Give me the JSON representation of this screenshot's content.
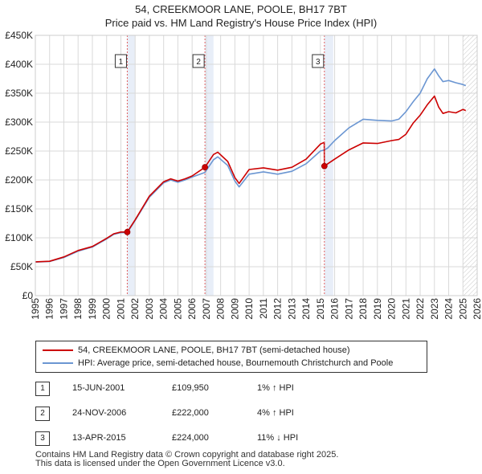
{
  "title_line1": "54, CREEKMOOR LANE, POOLE, BH17 7BT",
  "title_line2": "Price paid vs. HM Land Registry's House Price Index (HPI)",
  "legend": {
    "property_label": "54, CREEKMOOR LANE, POOLE, BH17 7BT (semi-detached house)",
    "hpi_label": "HPI: Average price, semi-detached house, Bournemouth Christchurch and Poole"
  },
  "colors": {
    "property": "#cc0000",
    "hpi": "#6b96d2",
    "band": "#e8eef8",
    "grid": "#d9d9d9"
  },
  "transactions": [
    {
      "num": "1",
      "date": "15-JUN-2001",
      "price": "£109,950",
      "hpi": "1% ↑ HPI"
    },
    {
      "num": "2",
      "date": "24-NOV-2006",
      "price": "£222,000",
      "hpi": "4% ↑ HPI"
    },
    {
      "num": "3",
      "date": "13-APR-2015",
      "price": "£224,000",
      "hpi": "11% ↓ HPI"
    }
  ],
  "footer_line1": "Contains HM Land Registry data © Crown copyright and database right 2025.",
  "footer_line2": "This data is licensed under the Open Government Licence v3.0.",
  "chart_data": {
    "type": "line",
    "title": "54, CREEKMOOR LANE, POOLE, BH17 7BT — Price paid vs. HM Land Registry's House Price Index (HPI)",
    "xlabel": "",
    "ylabel": "",
    "xlim": [
      1995,
      2026
    ],
    "ylim": [
      0,
      450000
    ],
    "x_ticks": [
      "1995",
      "1996",
      "1997",
      "1998",
      "1999",
      "2000",
      "2001",
      "2002",
      "2003",
      "2004",
      "2005",
      "2006",
      "2007",
      "2008",
      "2009",
      "2010",
      "2011",
      "2012",
      "2013",
      "2014",
      "2015",
      "2016",
      "2017",
      "2018",
      "2019",
      "2020",
      "2021",
      "2022",
      "2023",
      "2024",
      "2025",
      "2026"
    ],
    "y_ticks": [
      {
        "value": 0,
        "label": "£0"
      },
      {
        "value": 50000,
        "label": "£50K"
      },
      {
        "value": 100000,
        "label": "£100K"
      },
      {
        "value": 150000,
        "label": "£150K"
      },
      {
        "value": 200000,
        "label": "£200K"
      },
      {
        "value": 250000,
        "label": "£250K"
      },
      {
        "value": 300000,
        "label": "£300K"
      },
      {
        "value": 350000,
        "label": "£350K"
      },
      {
        "value": 400000,
        "label": "£400K"
      },
      {
        "value": 450000,
        "label": "£450K"
      }
    ],
    "grid": true,
    "shaded_bands": [
      [
        2001.45,
        2002.0
      ],
      [
        2006.9,
        2007.5
      ],
      [
        2015.28,
        2015.9
      ]
    ],
    "hatched_future_from": 2025.0,
    "series": [
      {
        "name": "HPI: Average price, semi-detached house, Bournemouth Christchurch and Poole",
        "x": [
          1995.0,
          1996.0,
          1997.0,
          1998.0,
          1999.0,
          2000.0,
          2000.5,
          2001.0,
          2001.45,
          2002.0,
          2003.0,
          2004.0,
          2004.5,
          2005.0,
          2005.5,
          2006.0,
          2006.9,
          2007.5,
          2007.8,
          2008.5,
          2009.0,
          2009.3,
          2010.0,
          2011.0,
          2012.0,
          2013.0,
          2014.0,
          2015.0,
          2015.28,
          2015.5,
          2016.0,
          2017.0,
          2018.0,
          2019.0,
          2020.0,
          2020.5,
          2021.0,
          2021.5,
          2022.0,
          2022.5,
          2023.0,
          2023.3,
          2023.6,
          2024.0,
          2024.5,
          2025.0,
          2025.2
        ],
        "values": [
          58000,
          59000,
          66000,
          77000,
          84000,
          98000,
          106000,
          109000,
          108800,
          130000,
          170000,
          195000,
          200000,
          196000,
          200000,
          205000,
          213000,
          235000,
          240000,
          225000,
          198000,
          188000,
          210000,
          214000,
          210000,
          215000,
          228000,
          250000,
          252000,
          255000,
          268000,
          290000,
          305000,
          303000,
          302000,
          305000,
          318000,
          335000,
          350000,
          375000,
          392000,
          380000,
          370000,
          372000,
          368000,
          365000,
          363000
        ]
      },
      {
        "name": "54, CREEKMOOR LANE, POOLE, BH17 7BT (semi-detached house)",
        "x": [
          1995.0,
          1996.0,
          1997.0,
          1998.0,
          1999.0,
          2000.0,
          2000.5,
          2001.0,
          2001.45,
          2002.0,
          2003.0,
          2004.0,
          2004.5,
          2005.0,
          2005.5,
          2006.0,
          2006.9,
          2007.5,
          2007.8,
          2008.5,
          2009.0,
          2009.3,
          2010.0,
          2011.0,
          2012.0,
          2013.0,
          2014.0,
          2015.0,
          2015.27,
          2015.28,
          2016.0,
          2017.0,
          2018.0,
          2019.0,
          2020.0,
          2020.5,
          2021.0,
          2021.5,
          2022.0,
          2022.5,
          2023.0,
          2023.3,
          2023.6,
          2024.0,
          2024.5,
          2025.0,
          2025.2
        ],
        "values": [
          58500,
          59500,
          67000,
          78000,
          85000,
          99000,
          107000,
          110000,
          109950,
          131000,
          172000,
          197000,
          202000,
          198000,
          202000,
          207000,
          222000,
          244000,
          248000,
          232000,
          204000,
          194000,
          218000,
          221000,
          217000,
          222000,
          236000,
          262000,
          265000,
          224000,
          236000,
          252000,
          264000,
          263000,
          268000,
          270000,
          279000,
          298000,
          312000,
          330000,
          345000,
          326000,
          315000,
          318000,
          316000,
          322000,
          320000
        ]
      }
    ],
    "markers": [
      {
        "num": "1",
        "x": 2001.45,
        "y": 109950
      },
      {
        "num": "2",
        "x": 2006.9,
        "y": 222000
      },
      {
        "num": "3",
        "x": 2015.28,
        "y": 224000
      }
    ]
  }
}
